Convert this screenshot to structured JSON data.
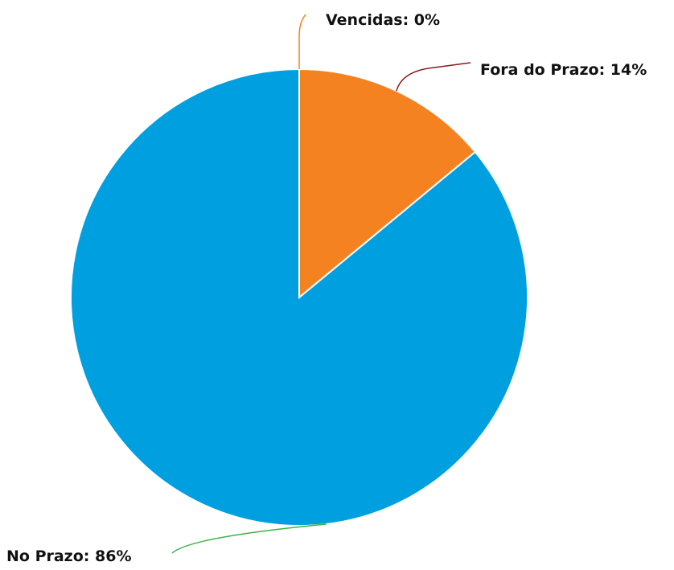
{
  "chart_data": {
    "type": "pie",
    "title": "",
    "slices": [
      {
        "label": "Vencidas: 0%",
        "category": "Vencidas",
        "value": 0,
        "color": "#f58220",
        "connector_color": "#f58220"
      },
      {
        "label": "Fora do Prazo: 14%",
        "category": "Fora do Prazo",
        "value": 14,
        "color": "#f58220",
        "connector_color": "#8b1a1a"
      },
      {
        "label": "No Prazo: 86%",
        "category": "No Prazo",
        "value": 86,
        "color": "#00a0e0",
        "connector_color": "#3cb043"
      }
    ],
    "start_angle": "12 o'clock",
    "direction": "clockwise",
    "legend": "none",
    "slice_border_color": "#ffffff"
  }
}
